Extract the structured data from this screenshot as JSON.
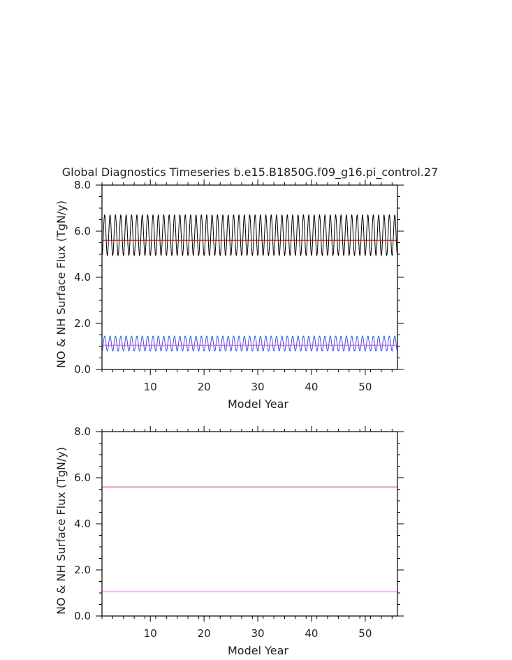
{
  "title": "Global Diagnostics Timeseries b.e15.B1850G.f09_g16.pi_control.27",
  "chart_data": [
    {
      "type": "line",
      "xlabel": "Model Year",
      "ylabel": "NO & NH Surface Flux (TgN/y)",
      "xlim": [
        1,
        56
      ],
      "ylim": [
        0,
        8
      ],
      "xticks": [
        10,
        20,
        30,
        40,
        50
      ],
      "xtick_labels": [
        "10",
        "20",
        "30",
        "40",
        "50"
      ],
      "yticks": [
        0,
        2,
        4,
        6,
        8
      ],
      "ytick_labels": [
        "0.0",
        "2.0",
        "4.0",
        "6.0",
        "8.0"
      ],
      "grid": false,
      "series": [
        {
          "color": "#000000",
          "kind": "seasonal",
          "min": 4.95,
          "max": 6.7,
          "cycles_per_year": 1,
          "start_year": 1,
          "end_year": 56
        },
        {
          "color": "#cc0000",
          "kind": "constant",
          "value": 5.6
        },
        {
          "color": "#3355dd",
          "kind": "seasonal",
          "min": 0.8,
          "max": 1.45,
          "cycles_per_year": 1,
          "start_year": 1,
          "end_year": 56
        },
        {
          "color": "#ee44ee",
          "kind": "constant",
          "value": 1.05
        }
      ]
    },
    {
      "type": "line",
      "xlabel": "Model Year",
      "ylabel": "NO & NH Surface Flux (TgN/y)",
      "xlim": [
        1,
        56
      ],
      "ylim": [
        0,
        8
      ],
      "xticks": [
        10,
        20,
        30,
        40,
        50
      ],
      "xtick_labels": [
        "10",
        "20",
        "30",
        "40",
        "50"
      ],
      "yticks": [
        0,
        2,
        4,
        6,
        8
      ],
      "ytick_labels": [
        "0.0",
        "2.0",
        "4.0",
        "6.0",
        "8.0"
      ],
      "grid": false,
      "series": [
        {
          "color": "#e05050",
          "kind": "constant",
          "value": 5.6
        },
        {
          "color": "#ff66ff",
          "kind": "constant",
          "value": 1.05
        }
      ]
    }
  ]
}
